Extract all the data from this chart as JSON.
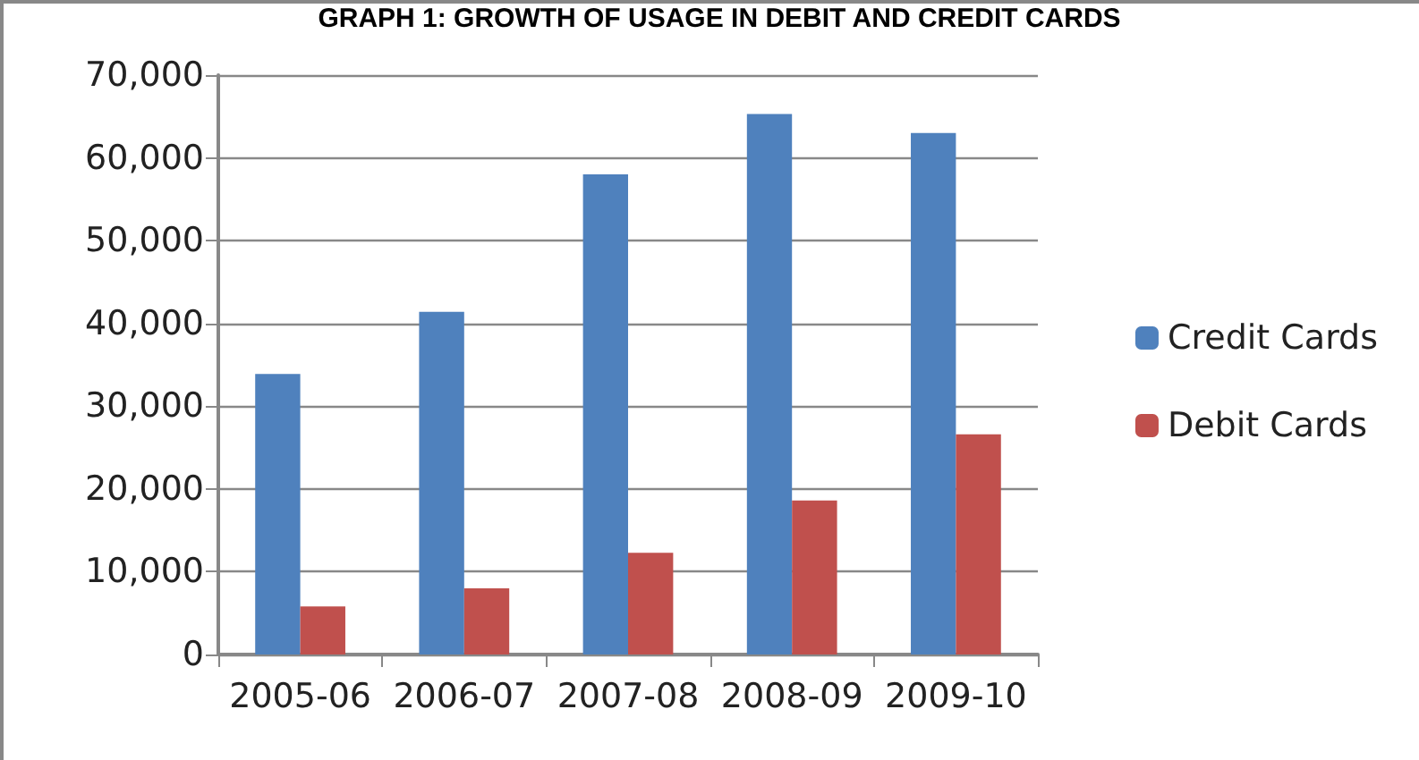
{
  "chart_data": {
    "type": "bar",
    "title": "GRAPH 1: GROWTH OF USAGE IN DEBIT AND CREDIT CARDS",
    "categories": [
      "2005-06",
      "2006-07",
      "2007-08",
      "2008-09",
      "2009-10"
    ],
    "series": [
      {
        "name": "Credit Cards",
        "color": "#4f81bd",
        "values": [
          33900,
          41400,
          58000,
          65300,
          63000
        ]
      },
      {
        "name": "Debit Cards",
        "color": "#c0504d",
        "values": [
          5800,
          8000,
          12300,
          18600,
          26600
        ]
      }
    ],
    "ylim": [
      0,
      70000
    ],
    "yticks": [
      0,
      {
        "value": 10000,
        "label": "10,000"
      },
      {
        "value": 20000,
        "label": "20,000"
      },
      {
        "value": 30000,
        "label": "30,000"
      },
      {
        "value": 40000,
        "label": "40,000"
      },
      {
        "value": 50000,
        "label": "50,000"
      },
      {
        "value": 60000,
        "label": "60,000"
      },
      {
        "value": 70000,
        "label": "70,000"
      }
    ],
    "grid": "y",
    "legend": "right"
  }
}
